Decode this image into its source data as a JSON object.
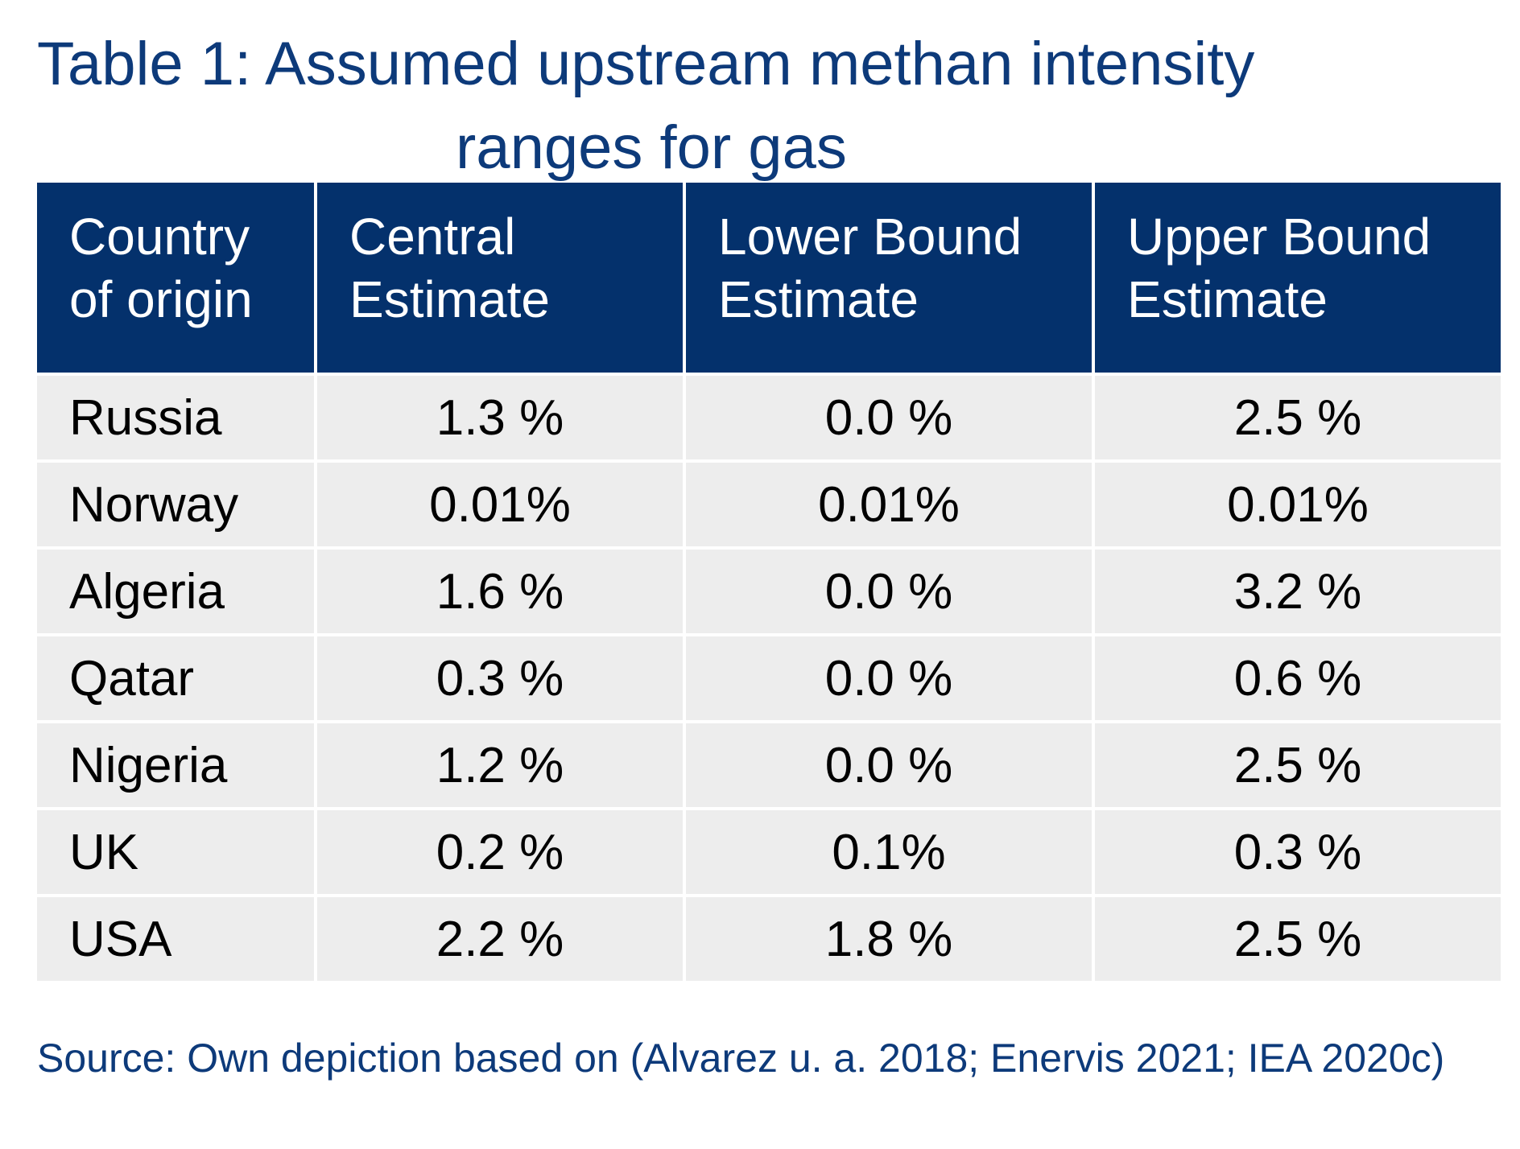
{
  "title": {
    "line1": "Table 1: Assumed upstream methan intensity",
    "line2": "ranges for gas"
  },
  "table": {
    "headers": [
      "Country of origin",
      "Central Estimate",
      "Lower Bound Estimate",
      "Upper Bound Estimate"
    ],
    "rows": [
      [
        "Russia",
        "1.3 %",
        "0.0 %",
        "2.5 %"
      ],
      [
        "Norway",
        "0.01%",
        "0.01%",
        "0.01%"
      ],
      [
        "Algeria",
        "1.6 %",
        "0.0 %",
        "3.2 %"
      ],
      [
        "Qatar",
        "0.3 %",
        "0.0 %",
        "0.6 %"
      ],
      [
        "Nigeria",
        "1.2 %",
        "0.0 %",
        "2.5 %"
      ],
      [
        "UK",
        "0.2 %",
        "0.1%",
        "0.3 %"
      ],
      [
        "USA",
        "2.2 %",
        "1.8 %",
        "2.5 %"
      ]
    ]
  },
  "source": "Source: Own depiction based on (Alvarez u. a. 2018; Enervis 2021; IEA 2020c)",
  "colors": {
    "header_bg": "#04316c",
    "title_text": "#0d3a7a",
    "row_bg": "#ededed"
  }
}
